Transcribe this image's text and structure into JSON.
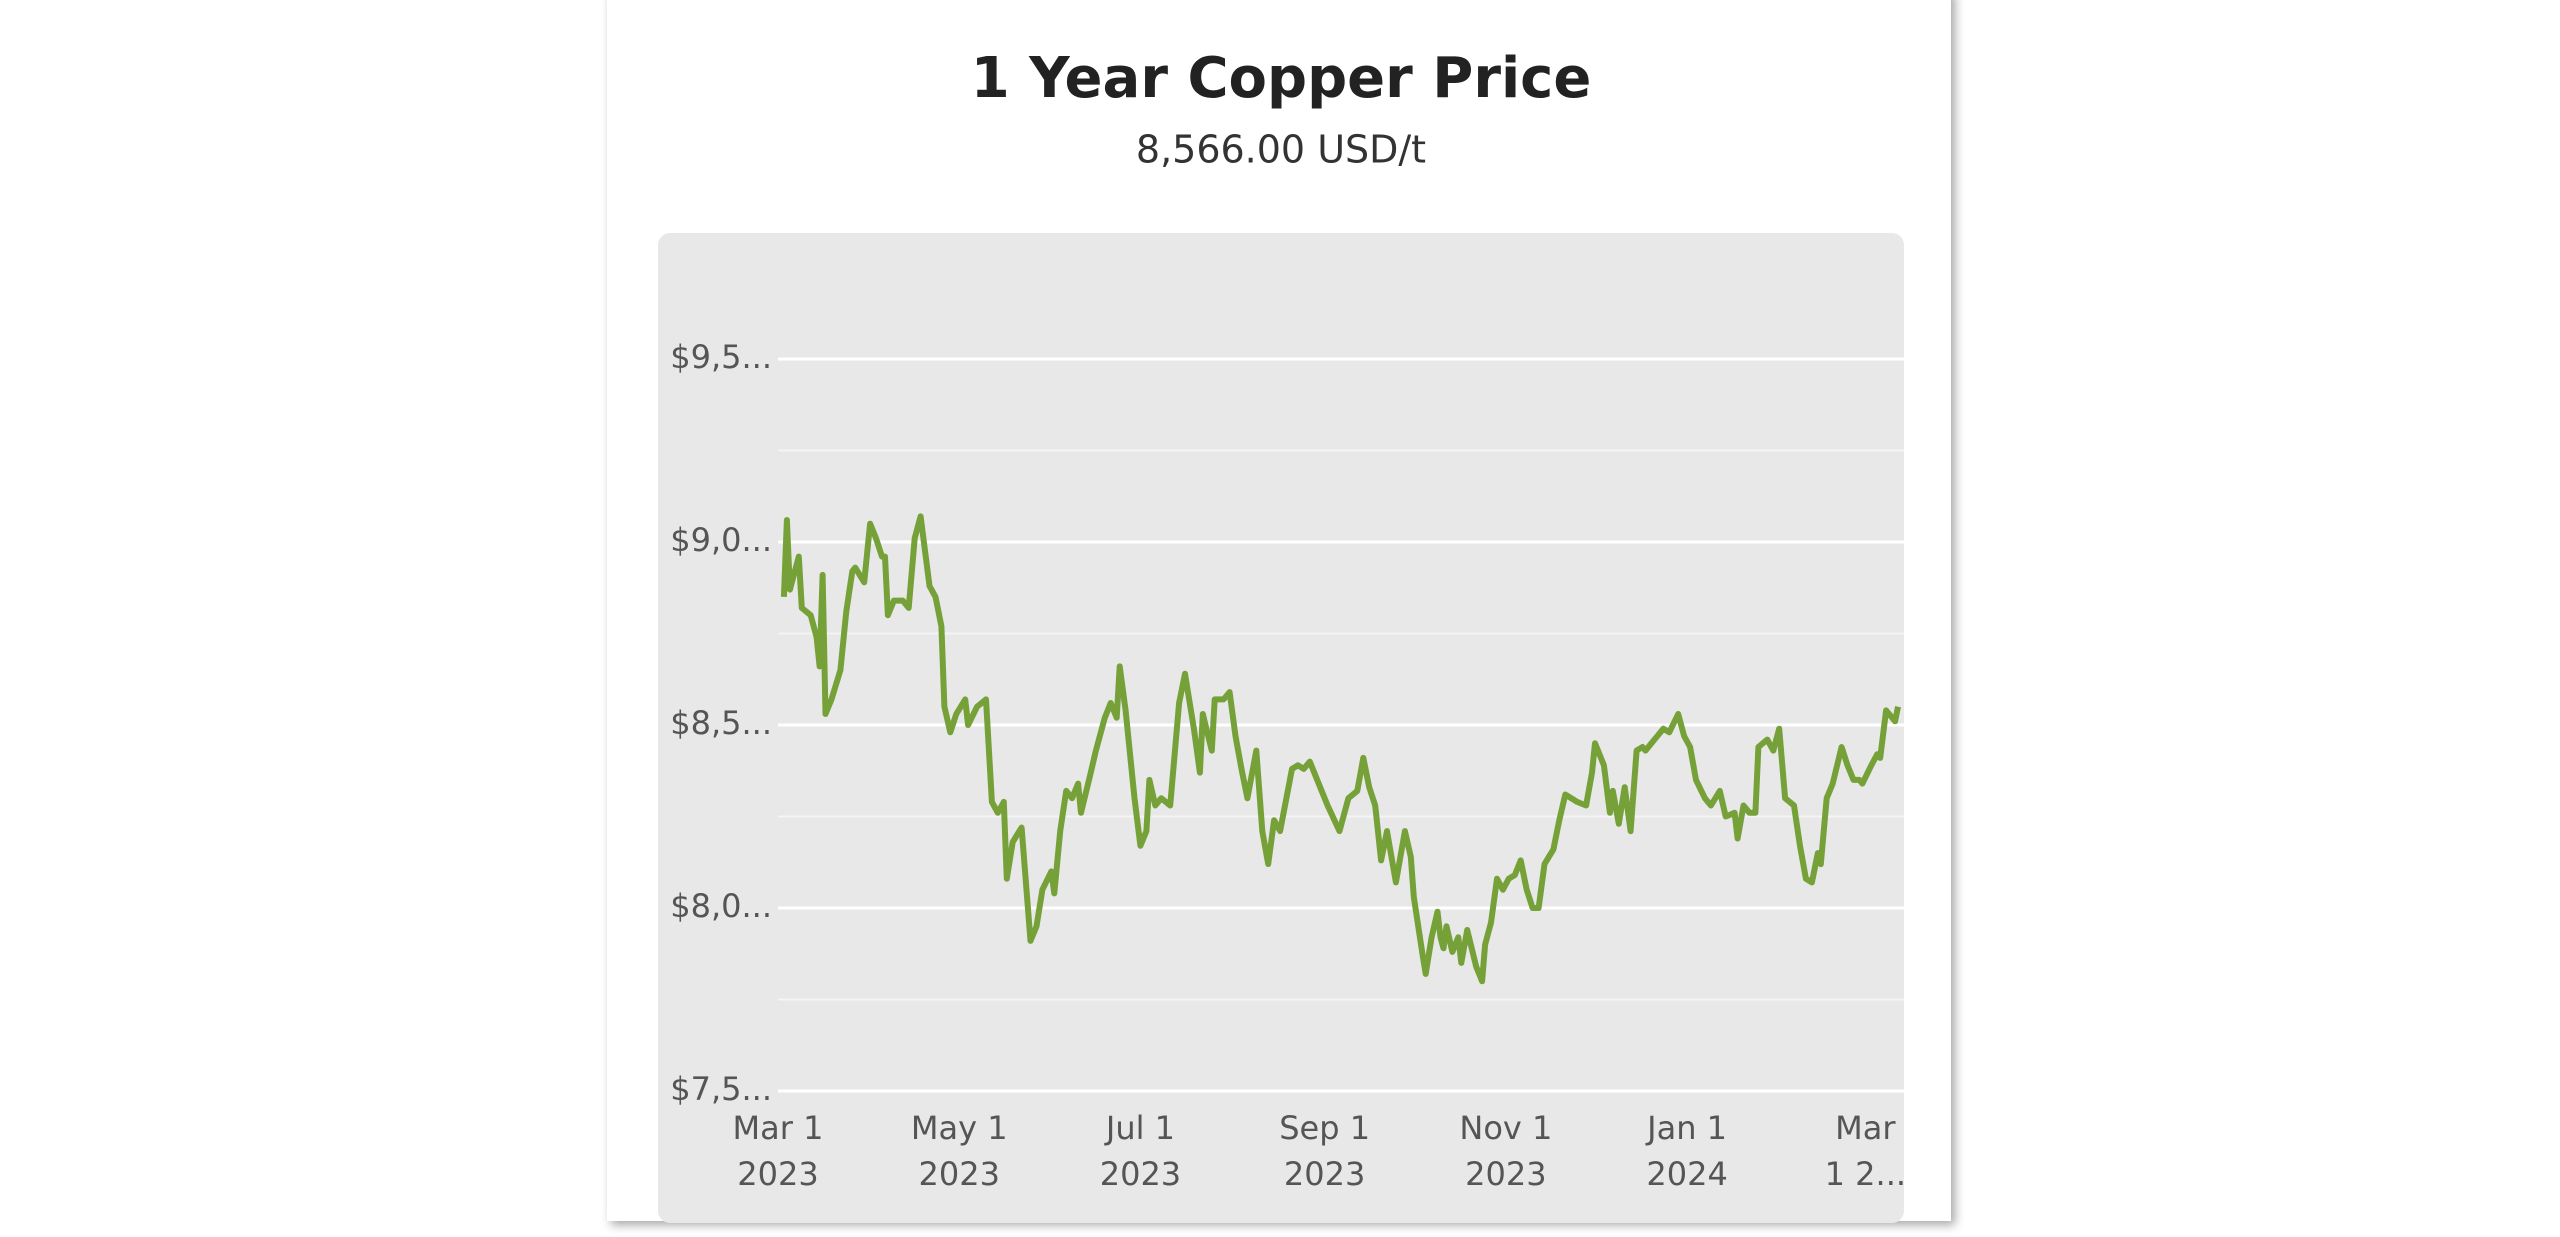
{
  "chart_data": {
    "type": "line",
    "title": "1 Year Copper Price",
    "subtitle": "8,566.00 USD/t",
    "x": [
      "2023-03-03",
      "2023-03-04",
      "2023-03-05",
      "2023-03-08",
      "2023-03-09",
      "2023-03-12",
      "2023-03-14",
      "2023-03-15",
      "2023-03-16",
      "2023-03-17",
      "2023-03-19",
      "2023-03-22",
      "2023-03-24",
      "2023-03-26",
      "2023-03-27",
      "2023-03-30",
      "2023-04-01",
      "2023-04-03",
      "2023-04-05",
      "2023-04-06",
      "2023-04-07",
      "2023-04-09",
      "2023-04-12",
      "2023-04-14",
      "2023-04-16",
      "2023-04-18",
      "2023-04-21",
      "2023-04-23",
      "2023-04-25",
      "2023-04-26",
      "2023-04-28",
      "2023-04-30",
      "2023-05-03",
      "2023-05-04",
      "2023-05-07",
      "2023-05-10",
      "2023-05-12",
      "2023-05-14",
      "2023-05-16",
      "2023-05-17",
      "2023-05-19",
      "2023-05-22",
      "2023-05-25",
      "2023-05-27",
      "2023-05-29",
      "2023-06-01",
      "2023-06-02",
      "2023-06-04",
      "2023-06-06",
      "2023-06-08",
      "2023-06-10",
      "2023-06-11",
      "2023-06-14",
      "2023-06-16",
      "2023-06-19",
      "2023-06-21",
      "2023-06-23",
      "2023-06-24",
      "2023-06-26",
      "2023-06-29",
      "2023-07-01",
      "2023-07-03",
      "2023-07-04",
      "2023-07-06",
      "2023-07-08",
      "2023-07-11",
      "2023-07-14",
      "2023-07-16",
      "2023-07-19",
      "2023-07-21",
      "2023-07-22",
      "2023-07-25",
      "2023-07-26",
      "2023-07-29",
      "2023-07-31",
      "2023-08-02",
      "2023-08-04",
      "2023-08-06",
      "2023-08-09",
      "2023-08-11",
      "2023-08-13",
      "2023-08-15",
      "2023-08-17",
      "2023-08-21",
      "2023-08-23",
      "2023-08-25",
      "2023-08-27",
      "2023-08-30",
      "2023-09-02",
      "2023-09-06",
      "2023-09-09",
      "2023-09-12",
      "2023-09-14",
      "2023-09-16",
      "2023-09-18",
      "2023-09-20",
      "2023-09-22",
      "2023-09-25",
      "2023-09-28",
      "2023-09-30",
      "2023-10-01",
      "2023-10-04",
      "2023-10-05",
      "2023-10-07",
      "2023-10-09",
      "2023-10-10",
      "2023-10-11",
      "2023-10-12",
      "2023-10-14",
      "2023-10-16",
      "2023-10-17",
      "2023-10-19",
      "2023-10-22",
      "2023-10-24",
      "2023-10-25",
      "2023-10-27",
      "2023-10-29",
      "2023-10-31",
      "2023-11-02",
      "2023-11-04",
      "2023-11-06",
      "2023-11-08",
      "2023-11-10",
      "2023-11-12",
      "2023-11-14",
      "2023-11-17",
      "2023-11-19",
      "2023-11-21",
      "2023-11-23",
      "2023-11-25",
      "2023-11-28",
      "2023-11-30",
      "2023-12-01",
      "2023-12-02",
      "2023-12-04",
      "2023-12-06",
      "2023-12-07",
      "2023-12-09",
      "2023-12-11",
      "2023-12-13",
      "2023-12-15",
      "2023-12-17",
      "2023-12-18",
      "2023-12-21",
      "2023-12-22",
      "2023-12-24",
      "2023-12-26",
      "2023-12-29",
      "2023-12-31",
      "2024-01-02",
      "2024-01-04",
      "2024-01-07",
      "2024-01-09",
      "2024-01-12",
      "2024-01-14",
      "2024-01-17",
      "2024-01-18",
      "2024-01-20",
      "2024-01-22",
      "2024-01-24",
      "2024-01-25",
      "2024-01-28",
      "2024-01-30",
      "2024-02-01",
      "2024-02-03",
      "2024-02-06",
      "2024-02-08",
      "2024-02-10",
      "2024-02-12",
      "2024-02-14",
      "2024-02-15",
      "2024-02-17",
      "2024-02-19",
      "2024-02-22",
      "2024-02-24",
      "2024-02-26",
      "2024-02-28",
      "2024-02-29",
      "2024-03-03",
      "2024-03-05",
      "2024-03-06",
      "2024-03-08",
      "2024-03-11",
      "2024-03-12"
    ],
    "series": [
      {
        "color": "#76a139",
        "values": [
          8850,
          9060,
          8870,
          8960,
          8820,
          8800,
          8740,
          8660,
          8910,
          8530,
          8570,
          8650,
          8810,
          8920,
          8930,
          8890,
          9050,
          9010,
          8960,
          8960,
          8800,
          8840,
          8840,
          8820,
          9010,
          9070,
          8880,
          8850,
          8770,
          8550,
          8480,
          8530,
          8570,
          8500,
          8550,
          8570,
          8290,
          8260,
          8290,
          8080,
          8180,
          8220,
          7910,
          7950,
          8050,
          8100,
          8040,
          8210,
          8320,
          8300,
          8340,
          8260,
          8360,
          8430,
          8520,
          8560,
          8520,
          8660,
          8540,
          8300,
          8170,
          8210,
          8350,
          8280,
          8300,
          8280,
          8560,
          8640,
          8490,
          8370,
          8530,
          8430,
          8570,
          8570,
          8590,
          8470,
          8380,
          8300,
          8430,
          8210,
          8120,
          8240,
          8210,
          8380,
          8390,
          8380,
          8400,
          8340,
          8280,
          8210,
          8300,
          8320,
          8410,
          8330,
          8280,
          8130,
          8210,
          8070,
          8210,
          8140,
          8030,
          7870,
          7820,
          7920,
          7990,
          7920,
          7890,
          7950,
          7880,
          7920,
          7850,
          7940,
          7840,
          7800,
          7900,
          7960,
          8080,
          8050,
          8080,
          8090,
          8130,
          8050,
          8000,
          8000,
          8120,
          8160,
          8240,
          8310,
          8300,
          8290,
          8280,
          8370,
          8450,
          8430,
          8390,
          8260,
          8320,
          8230,
          8330,
          8210,
          8430,
          8440,
          8430,
          8460,
          8470,
          8490,
          8480,
          8530,
          8470,
          8440,
          8350,
          8300,
          8280,
          8320,
          8250,
          8260,
          8190,
          8280,
          8260,
          8260,
          8440,
          8460,
          8430,
          8490,
          8300,
          8280,
          8170,
          8080,
          8070,
          8150,
          8120,
          8300,
          8340,
          8440,
          8390,
          8350,
          8350,
          8340,
          8390,
          8420,
          8410,
          8540,
          8510,
          8550
        ]
      }
    ],
    "xlim": [
      "2023-03-01",
      "2024-03-13"
    ],
    "xticks": [
      {
        "value": "2023-03-01",
        "label": [
          "Mar 1",
          "2023"
        ]
      },
      {
        "value": "2023-05-01",
        "label": [
          "May 1",
          "2023"
        ]
      },
      {
        "value": "2023-07-01",
        "label": [
          "Jul 1",
          "2023"
        ]
      },
      {
        "value": "2023-09-01",
        "label": [
          "Sep 1",
          "2023"
        ]
      },
      {
        "value": "2023-11-01",
        "label": [
          "Nov 1",
          "2023"
        ]
      },
      {
        "value": "2024-01-01",
        "label": [
          "Jan 1",
          "2024"
        ]
      },
      {
        "value": "2024-03-01",
        "label": [
          "Mar",
          "1 2..."
        ]
      }
    ],
    "ylim": [
      7500,
      9750
    ],
    "yticks": [
      {
        "value": 7500,
        "label": "$7,5..."
      },
      {
        "value": 8000,
        "label": "$8,0..."
      },
      {
        "value": 8500,
        "label": "$8,5..."
      },
      {
        "value": 9000,
        "label": "$9,0..."
      },
      {
        "value": 9500,
        "label": "$9,5..."
      }
    ],
    "minor_yticks": [
      7750,
      8250,
      8750,
      9250
    ],
    "grid": true
  }
}
